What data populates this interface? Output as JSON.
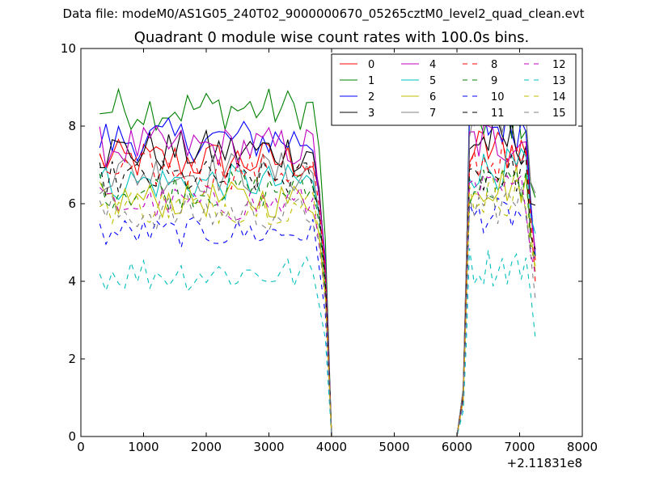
{
  "suptitle": "Data file: modeM0/AS1G05_240T02_9000000670_05265cztM0_level2_quad_clean.evt",
  "chart_data": {
    "type": "line",
    "title": "Quadrant 0 module wise count rates with 100.0s bins.",
    "xlabel": "",
    "ylabel": "",
    "x_offset_label": "+2.11831e8",
    "xlim": [
      0,
      8000
    ],
    "ylim": [
      0,
      10
    ],
    "xticks": [
      0,
      1000,
      2000,
      3000,
      4000,
      5000,
      6000,
      7000,
      8000
    ],
    "yticks": [
      0,
      2,
      4,
      6,
      8,
      10
    ],
    "legend_position": "top-right",
    "legend_columns": 4,
    "segments": [
      {
        "name": "seg1",
        "x_start": 300,
        "x_end": 3900,
        "x_step": 100
      },
      {
        "name": "gap",
        "x": [
          4000,
          4100,
          4200,
          4300,
          4400,
          4500,
          4600,
          4700,
          4800,
          4900,
          5000,
          5100,
          5200,
          5300,
          5400,
          5500,
          5600,
          5700,
          5800,
          5900,
          6000
        ]
      },
      {
        "name": "seg2",
        "x_start": 6100,
        "x_end": 7250
      }
    ],
    "series": [
      {
        "name": "0",
        "color": "#ff0000",
        "dash": "solid",
        "level1": 7.1,
        "level2": 7.4,
        "spread": 0.35
      },
      {
        "name": "1",
        "color": "#008000",
        "dash": "solid",
        "level1": 8.45,
        "level2": 8.2,
        "spread": 0.35
      },
      {
        "name": "2",
        "color": "#0000ff",
        "dash": "solid",
        "level1": 7.65,
        "level2": 8.0,
        "spread": 0.35
      },
      {
        "name": "3",
        "color": "#000000",
        "dash": "solid",
        "level1": 7.35,
        "level2": 7.6,
        "spread": 0.35
      },
      {
        "name": "4",
        "color": "#bf00bf",
        "dash": "solid",
        "level1": 7.45,
        "level2": 7.6,
        "spread": 0.35
      },
      {
        "name": "5",
        "color": "#00bfbf",
        "dash": "solid",
        "level1": 6.55,
        "level2": 6.9,
        "spread": 0.3
      },
      {
        "name": "6",
        "color": "#bfbf00",
        "dash": "solid",
        "level1": 6.1,
        "level2": 6.5,
        "spread": 0.3
      },
      {
        "name": "7",
        "color": "#808080",
        "dash": "solid",
        "level1": 6.8,
        "level2": 8.3,
        "spread": 0.35
      },
      {
        "name": "8",
        "color": "#ff0000",
        "dash": "dashed",
        "level1": 6.85,
        "level2": 7.1,
        "spread": 0.3
      },
      {
        "name": "9",
        "color": "#008000",
        "dash": "dashed",
        "level1": 6.35,
        "level2": 6.5,
        "spread": 0.3
      },
      {
        "name": "10",
        "color": "#0000ff",
        "dash": "dashed",
        "level1": 5.25,
        "level2": 5.7,
        "spread": 0.25
      },
      {
        "name": "11",
        "color": "#000000",
        "dash": "dashed",
        "level1": 6.65,
        "level2": 6.8,
        "spread": 0.3
      },
      {
        "name": "12",
        "color": "#bf00bf",
        "dash": "dashed",
        "level1": 6.0,
        "level2": 6.3,
        "spread": 0.3
      },
      {
        "name": "13",
        "color": "#00bfbf",
        "dash": "dashed",
        "level1": 4.2,
        "level2": 4.4,
        "spread": 0.3
      },
      {
        "name": "14",
        "color": "#bfbf00",
        "dash": "dashed",
        "level1": 5.95,
        "level2": 6.2,
        "spread": 0.3
      },
      {
        "name": "15",
        "color": "#808080",
        "dash": "dashed",
        "level1": 5.75,
        "level2": 6.0,
        "spread": 0.3
      }
    ]
  }
}
